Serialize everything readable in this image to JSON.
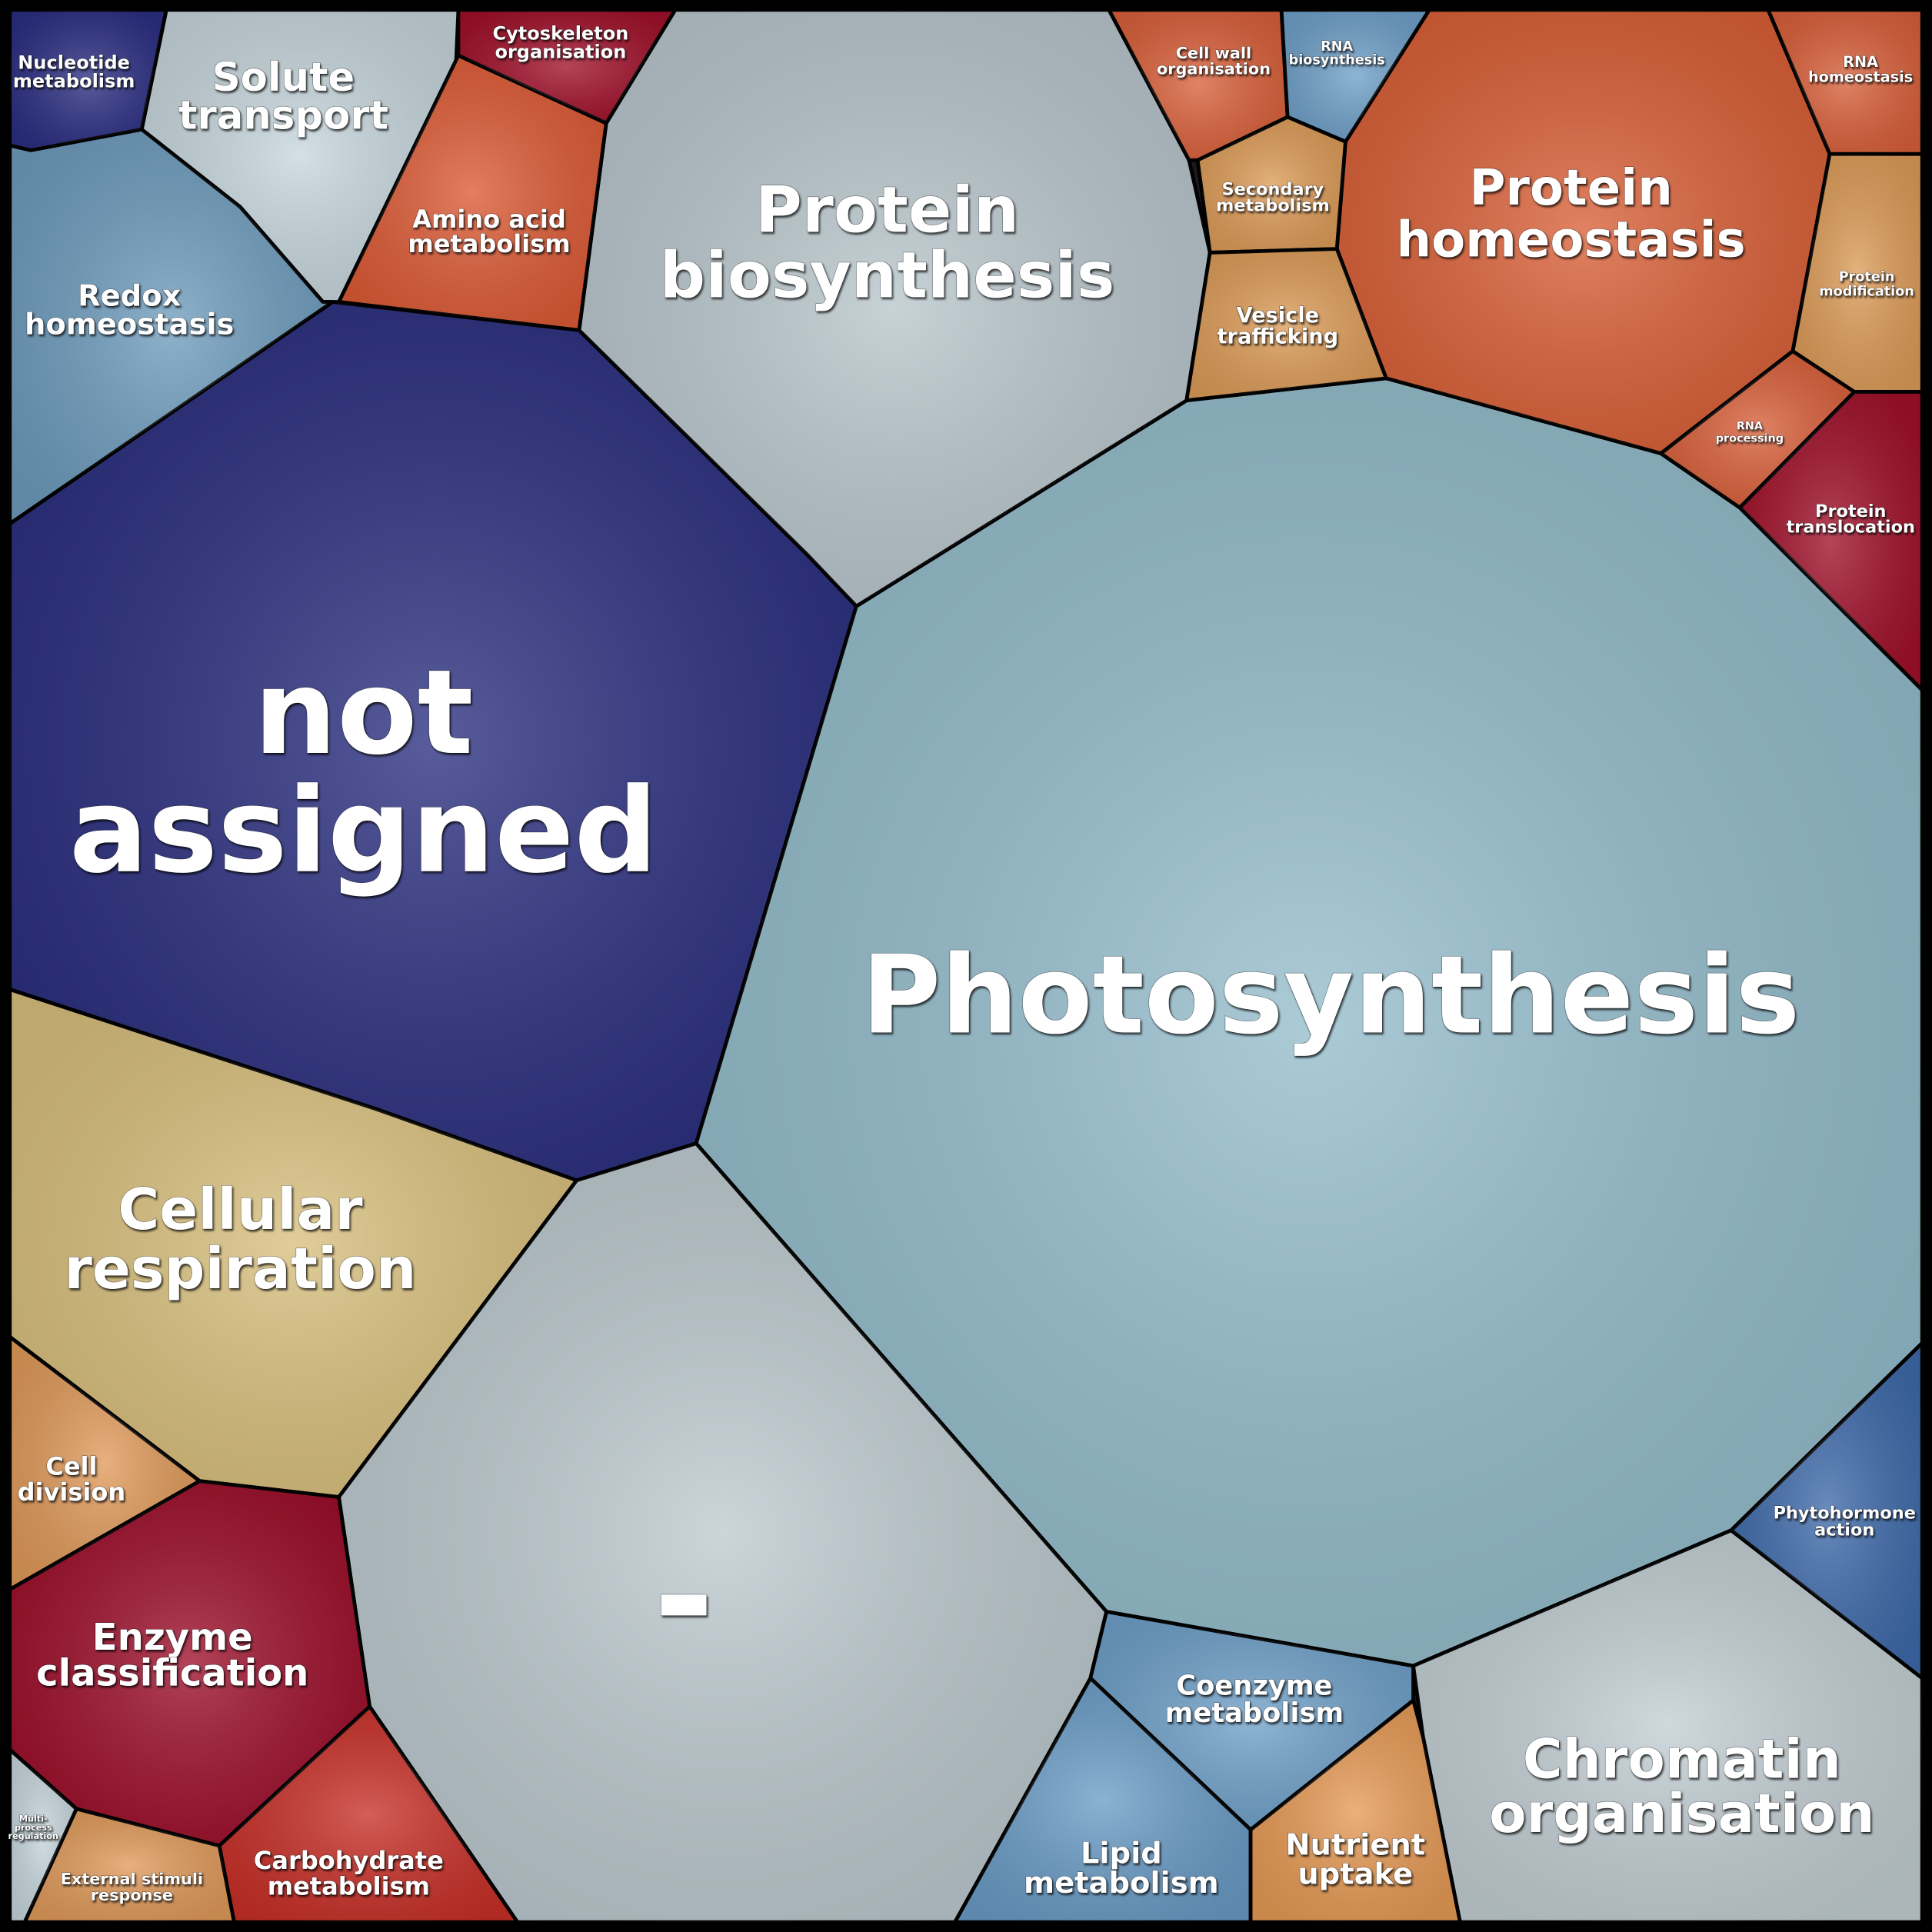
{
  "cells": [
    {
      "label": [
        "not",
        "assigned"
      ]
    },
    {
      "label": [
        "Photosynthesis"
      ]
    },
    {
      "label": [
        "Protein",
        "biosynthesis"
      ]
    },
    {
      "label": [
        "Protein",
        "homeostasis"
      ]
    },
    {
      "label": [
        "Cellular",
        "respiration"
      ]
    },
    {
      "label": [
        "-"
      ]
    },
    {
      "label": [
        "Chromatin",
        "organisation"
      ]
    },
    {
      "label": [
        "Solute",
        "transport"
      ]
    },
    {
      "label": [
        "Redox",
        "homeostasis"
      ]
    },
    {
      "label": [
        "Nucleotide",
        "metabolism"
      ]
    },
    {
      "label": [
        "Amino acid",
        "metabolism"
      ]
    },
    {
      "label": [
        "Cytoskeleton",
        "organisation"
      ]
    },
    {
      "label": [
        "Cell wall",
        "organisation"
      ]
    },
    {
      "label": [
        "RNA",
        "biosynthesis"
      ]
    },
    {
      "label": [
        "Secondary",
        "metabolism"
      ]
    },
    {
      "label": [
        "Vesicle",
        "trafficking"
      ]
    },
    {
      "label": [
        "RNA",
        "homeostasis"
      ]
    },
    {
      "label": [
        "Protein",
        "modification"
      ]
    },
    {
      "label": [
        "RNA",
        "processing"
      ]
    },
    {
      "label": [
        "Protein",
        "translocation"
      ]
    },
    {
      "label": [
        "Phytohormone",
        "action"
      ]
    },
    {
      "label": [
        "Coenzyme",
        "metabolism"
      ]
    },
    {
      "label": [
        "Lipid",
        "metabolism"
      ]
    },
    {
      "label": [
        "Nutrient",
        "uptake"
      ]
    },
    {
      "label": [
        "Cell",
        "division"
      ]
    },
    {
      "label": [
        "Enzyme",
        "classification"
      ]
    },
    {
      "label": [
        "Carbohydrate",
        "metabolism"
      ]
    },
    {
      "label": [
        "External stimuli",
        "response"
      ]
    },
    {
      "label": [
        "Multi-",
        "process",
        "regulation"
      ]
    }
  ]
}
